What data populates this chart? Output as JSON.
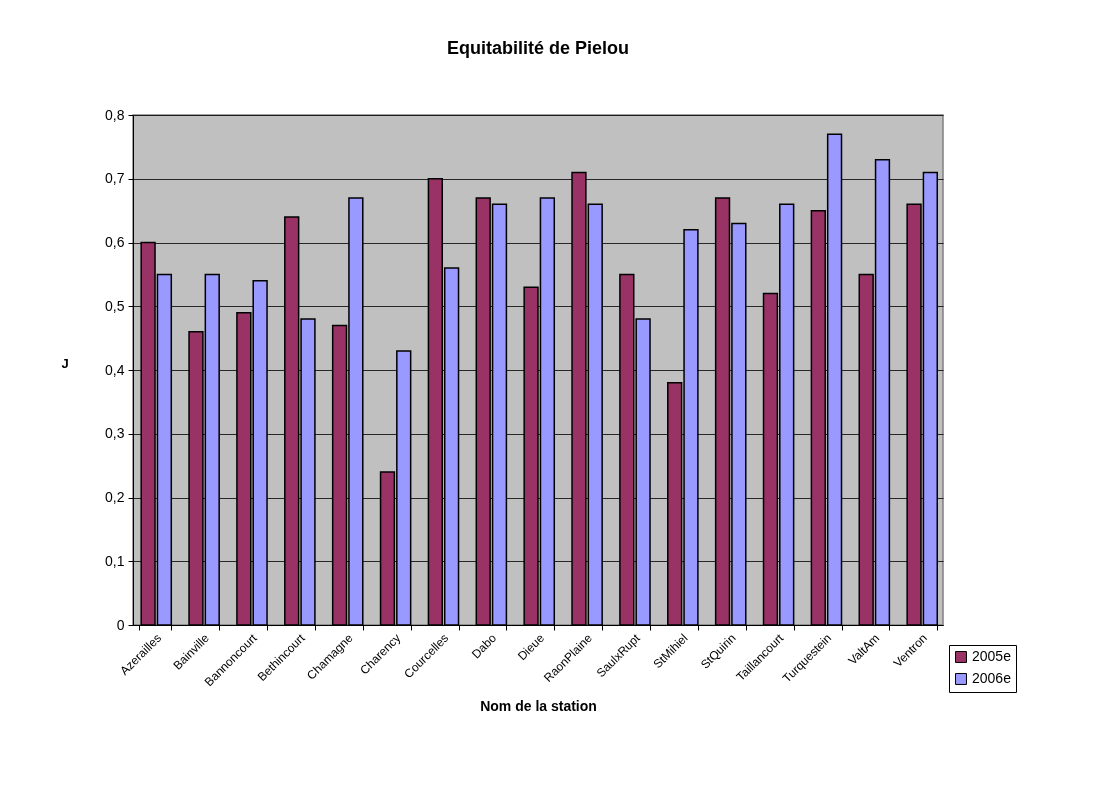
{
  "chart_data": {
    "type": "bar",
    "title": "Equitabilité de Pielou",
    "xlabel": "Nom de la station",
    "ylabel": "J",
    "categories": [
      "Azerailles",
      "Bainville",
      "Bannoncourt",
      "Bethincourt",
      "Chamagne",
      "Charency",
      "Courcelles",
      "Dabo",
      "Dieue",
      "RaonPlaine",
      "SaulxRupt",
      "StMihiel",
      "StQuirin",
      "Taillancourt",
      "Turquestein",
      "ValtAm",
      "Ventron"
    ],
    "series": [
      {
        "name": "2005e",
        "color": "#993366",
        "values": [
          0.6,
          0.46,
          0.49,
          0.64,
          0.47,
          0.24,
          0.7,
          0.67,
          0.53,
          0.71,
          0.55,
          0.38,
          0.67,
          0.52,
          0.65,
          0.55,
          0.66
        ]
      },
      {
        "name": "2006e",
        "color": "#9999ff",
        "values": [
          0.55,
          0.55,
          0.54,
          0.48,
          0.67,
          0.43,
          0.56,
          0.66,
          0.67,
          0.66,
          0.48,
          0.62,
          0.63,
          0.66,
          0.77,
          0.73,
          0.71
        ]
      }
    ],
    "ylim": [
      0,
      0.8
    ],
    "yticks": [
      0,
      {
        "value": 0.1,
        "label": "0,1"
      },
      {
        "value": 0.2,
        "label": "0,2"
      },
      {
        "value": 0.3,
        "label": "0,3"
      },
      {
        "value": 0.4,
        "label": "0,4"
      },
      {
        "value": 0.5,
        "label": "0,5"
      },
      {
        "value": 0.6,
        "label": "0,6"
      },
      {
        "value": 0.7,
        "label": "0,7"
      },
      {
        "value": 0.8,
        "label": "0,8"
      }
    ],
    "grid": "y",
    "legend": "bottom right"
  }
}
